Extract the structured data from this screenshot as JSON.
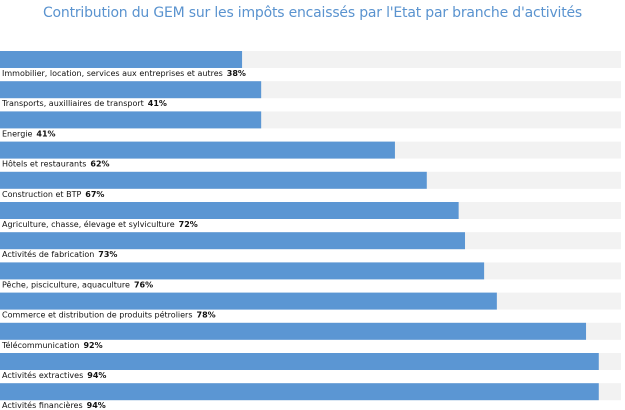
{
  "chart_data": {
    "type": "bar",
    "orientation": "horizontal",
    "title": "Contribution du GEM sur les impôts encaissés par l'Etat par branche d'activités",
    "xlim": [
      0,
      100
    ],
    "grid": false,
    "legend": "none",
    "colors": {
      "bar": "#5b96d3",
      "track": "#f2f2f2",
      "title": "#5a93cf"
    },
    "categories": [
      "Immobilier, location, services aux entreprises et autres",
      "Transports, auxilliaires de transport",
      "Energie",
      "Hôtels et restaurants",
      "Construction et BTP",
      "Agriculture, chasse, élevage et sylviculture",
      "Activités de fabrication",
      "Pêche, pisciculture, aquaculture",
      "Commerce et distribution de produits pétroliers",
      "Télécommunication",
      "Activités extractives",
      "Activités financières"
    ],
    "values": [
      38,
      41,
      41,
      62,
      67,
      72,
      73,
      76,
      78,
      92,
      94,
      94
    ],
    "value_labels": [
      "38%",
      "41%",
      "41%",
      "62%",
      "67%",
      "72%",
      "73%",
      "76%",
      "78%",
      "92%",
      "94%",
      "94%"
    ]
  }
}
